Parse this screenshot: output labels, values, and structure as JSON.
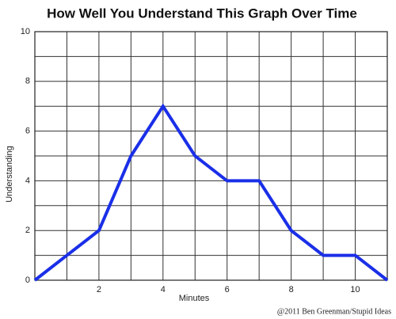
{
  "chart_data": {
    "type": "line",
    "title": "How Well You Understand This Graph Over Time",
    "x_label": "Minutes",
    "y_label": "Understanding",
    "credit": "@2011 Ben Greenman/Stupid Ideas",
    "series": [
      {
        "color": "#1a2fe8",
        "x": [
          0,
          1,
          2,
          3,
          4,
          5,
          6,
          7,
          8,
          9,
          10,
          11
        ],
        "values": [
          0,
          1,
          2,
          5,
          7,
          5,
          4,
          4,
          2,
          1,
          1,
          0
        ]
      }
    ],
    "xlim": [
      0,
      11
    ],
    "ylim": [
      0,
      10
    ],
    "xticks": [
      2,
      4,
      6,
      8,
      10
    ],
    "yticks": [
      0,
      2,
      4,
      6,
      8,
      10
    ],
    "x_minor_ticks": [
      1,
      3,
      5,
      7,
      9,
      11
    ],
    "y_minor_ticks": [
      1,
      3,
      5,
      7,
      9
    ],
    "grid": true
  }
}
